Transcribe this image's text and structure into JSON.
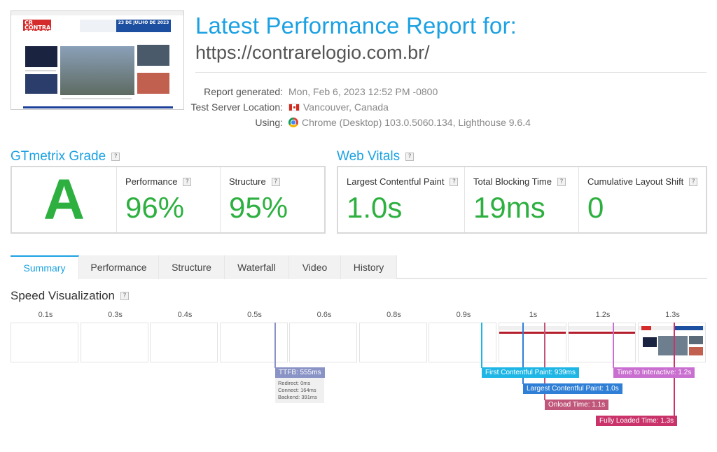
{
  "header": {
    "title": "Latest Performance Report for:",
    "url": "https://contrarelogio.com.br/",
    "thumbnail": {
      "logo_text": "CR CONTRA RELOGIO",
      "banner_text": "23 DE JULHO DE 2023"
    }
  },
  "meta": {
    "generated_label": "Report generated:",
    "generated_value": "Mon, Feb 6, 2023 12:52 PM -0800",
    "location_label": "Test Server Location:",
    "location_value": "Vancouver, Canada",
    "using_label": "Using:",
    "using_value": "Chrome (Desktop) 103.0.5060.134, Lighthouse 9.6.4",
    "icons": {
      "location": "canada-flag-icon",
      "browser": "chrome-icon"
    }
  },
  "gtmetrix": {
    "heading": "GTmetrix Grade",
    "help": "?",
    "grade": "A",
    "performance_label": "Performance",
    "performance_value": "96%",
    "structure_label": "Structure",
    "structure_value": "95%"
  },
  "web_vitals": {
    "heading": "Web Vitals",
    "help": "?",
    "lcp_label": "Largest Contentful Paint",
    "lcp_value": "1.0s",
    "tbt_label": "Total Blocking Time",
    "tbt_value": "19ms",
    "cls_label": "Cumulative Layout Shift",
    "cls_value": "0"
  },
  "tabs": [
    "Summary",
    "Performance",
    "Structure",
    "Waterfall",
    "Video",
    "History"
  ],
  "active_tab": "Summary",
  "speed": {
    "heading": "Speed Visualization",
    "help": "?",
    "ticks": [
      "0.1s",
      "0.3s",
      "0.4s",
      "0.5s",
      "0.6s",
      "0.8s",
      "0.9s",
      "1s",
      "1.2s",
      "1.3s"
    ],
    "markers": {
      "ttfb": "TTFB: 555ms",
      "ttfb_redirect": "Redirect: 0ms",
      "ttfb_connect": "Connect: 164ms",
      "ttfb_backend": "Backend: 391ms",
      "fcp": "First Contentful Paint: 939ms",
      "lcp": "Largest Contentful Paint: 1.0s",
      "onload": "Onload Time: 1.1s",
      "fully_loaded": "Fully Loaded Time: 1.3s",
      "tti": "Time to Interactive: 1.2s"
    }
  },
  "colors": {
    "accent": "#1ba1e2",
    "grade_green": "#2db040",
    "ttfb": "#8a93c6",
    "fcp": "#1fb6e6",
    "lcp": "#2f7fd6",
    "onload": "#c0577b",
    "fully_loaded": "#c9336a",
    "tti": "#c96fd0"
  }
}
